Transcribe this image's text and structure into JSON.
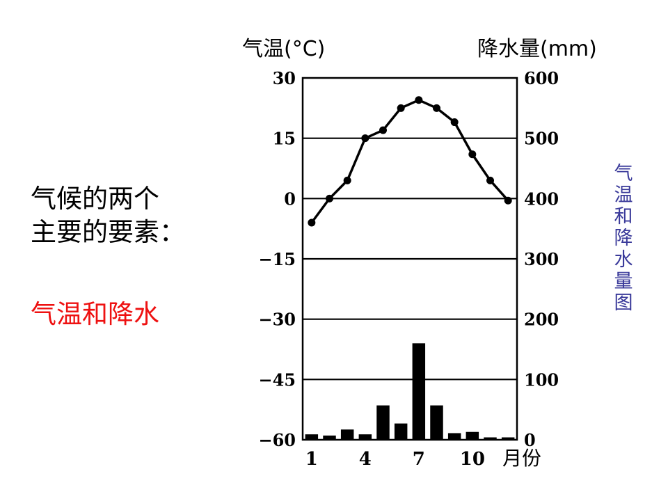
{
  "slide": {
    "lines": [
      "气候的两个",
      "主要的要素："
    ],
    "answer": "气温和降水",
    "caption": "气温和降水量图",
    "answer_color": "#ee1111",
    "caption_color": "#3a3a9a"
  },
  "chart_data": {
    "type": "bar+line",
    "title": "",
    "left_axis_label": "气温(°C)",
    "right_axis_label": "降水量(mm)",
    "x_axis_label": "月份",
    "temperature_ylim": [
      -60,
      30
    ],
    "temperature_ticks": [
      "30",
      "15",
      "0",
      "−15",
      "−30",
      "−45",
      "−60"
    ],
    "precip_ylim": [
      0,
      600
    ],
    "precip_ticks": [
      "600",
      "500",
      "400",
      "300",
      "200",
      "100",
      "0"
    ],
    "x_ticks": [
      {
        "month": 1,
        "label": "1"
      },
      {
        "month": 4,
        "label": "4"
      },
      {
        "month": 7,
        "label": "7"
      },
      {
        "month": 10,
        "label": "10"
      }
    ],
    "months": [
      1,
      2,
      3,
      4,
      5,
      6,
      7,
      8,
      9,
      10,
      11,
      12
    ],
    "temperature": [
      -6,
      0,
      4.5,
      15,
      17,
      22.5,
      24.5,
      22.5,
      19,
      11,
      4.5,
      -0.5
    ],
    "precipitation": [
      9,
      7,
      17,
      9,
      57,
      27,
      160,
      57,
      11,
      13,
      4,
      4
    ],
    "grid": "horizontal"
  }
}
